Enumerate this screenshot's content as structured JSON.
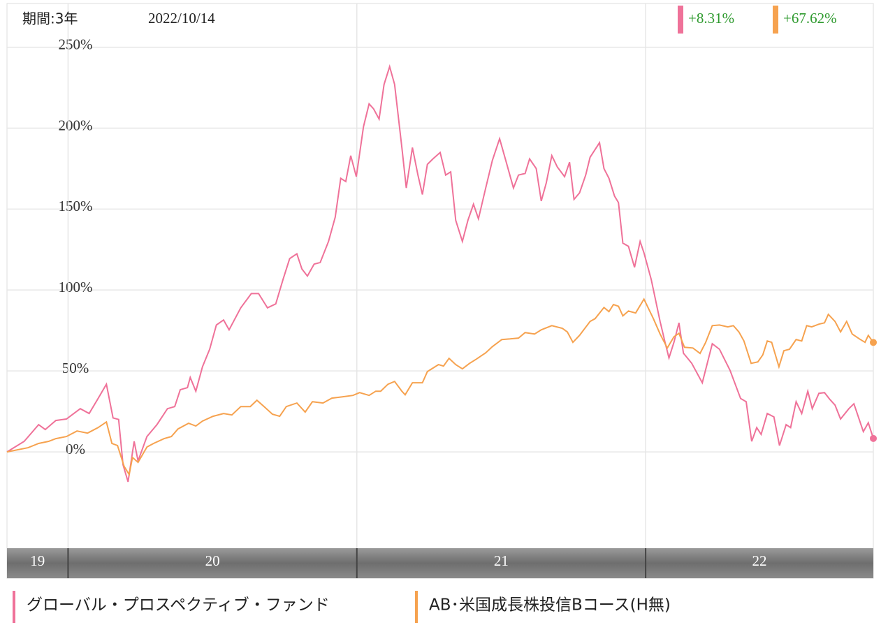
{
  "chart_data": {
    "type": "line",
    "period_label": "期間:3年",
    "date": "2022/10/14",
    "xlim": [
      0,
      156
    ],
    "xticks": [
      11,
      63,
      115
    ],
    "x_band_labels": [
      "19",
      "20",
      "21",
      "22"
    ],
    "ylim": [
      -59.5,
      277
    ],
    "yticks": [
      {
        "value": 0,
        "label": "0%"
      },
      {
        "value": 50,
        "label": "50%"
      },
      {
        "value": 100,
        "label": "100%"
      },
      {
        "value": 150,
        "label": "150%"
      },
      {
        "value": 200,
        "label": "200%"
      },
      {
        "value": 250,
        "label": "250%"
      }
    ],
    "grid": true,
    "series": [
      {
        "name": "グローバル・プロスペクティブ・ファンド",
        "color": "#ef7299",
        "end_label": "+8.31%",
        "x": [
          0,
          3.1,
          5.7,
          6.9,
          8.8,
          10.7,
          13.2,
          14.8,
          16.4,
          17.9,
          19.1,
          20.1,
          20.9,
          21.8,
          22.9,
          23.6,
          25.2,
          27.0,
          28.9,
          30.2,
          31.2,
          32.5,
          33.0,
          34.0,
          35.2,
          36.5,
          37.7,
          39.0,
          40.0,
          42.1,
          44.0,
          45.3,
          46.9,
          48.4,
          49.7,
          50.9,
          52.2,
          53.1,
          54.1,
          55.3,
          56.4,
          57.9,
          59.1,
          60.1,
          61.0,
          61.9,
          62.9,
          64.2,
          65.2,
          66.0,
          67.0,
          67.9,
          68.9,
          69.8,
          71.1,
          71.9,
          73.0,
          74.0,
          74.8,
          75.7,
          76.7,
          78.0,
          79.0,
          79.9,
          80.8,
          82.0,
          83.0,
          84.0,
          84.9,
          86.2,
          87.4,
          88.7,
          89.9,
          91.2,
          92.1,
          93.3,
          94.1,
          95.3,
          96.2,
          97.1,
          98.1,
          99.1,
          100.4,
          101.3,
          102.1,
          103.1,
          104.2,
          105.0,
          106.7,
          107.5,
          108.4,
          109.4,
          110.1,
          110.9,
          111.9,
          113.0,
          114.0,
          114.7,
          116.0,
          117.6,
          118.5,
          119.2,
          120.1,
          121.0,
          121.8,
          123.3,
          125.2,
          127.0,
          128.3,
          130.2,
          132.1,
          133.1,
          134.1,
          135.0,
          135.8,
          136.9,
          138.1,
          139.1,
          140.3,
          141.1,
          142.1,
          143.1,
          144.2,
          145.0,
          146.2,
          147.2,
          148.2,
          149.1,
          150.1,
          151.6,
          152.5,
          154.2,
          155.1,
          156
        ],
        "values": [
          0,
          6.5,
          16.8,
          13.8,
          19.4,
          20.3,
          26.7,
          23.7,
          33,
          41.8,
          21,
          20,
          -8,
          -18.5,
          6.5,
          -5.6,
          9.5,
          16.8,
          26.7,
          28,
          38.4,
          39.7,
          46,
          37.5,
          52.6,
          63.4,
          78.4,
          81.5,
          75.4,
          89,
          97.8,
          97.8,
          89,
          91.4,
          106.5,
          119.4,
          122.4,
          113,
          108.6,
          116,
          117,
          130,
          145,
          169,
          167,
          183,
          170,
          201,
          215,
          212,
          205.6,
          227,
          238,
          227,
          188,
          163,
          188,
          171,
          159,
          177.6,
          181,
          185,
          171,
          173,
          143,
          130,
          143,
          153,
          144,
          163,
          180,
          193.5,
          179,
          163,
          171,
          172,
          181,
          175,
          155,
          166,
          183,
          176,
          170,
          179,
          156,
          160,
          171,
          182,
          191,
          175,
          169,
          158,
          154,
          129,
          127,
          114,
          130,
          123,
          106.5,
          80.6,
          67.7,
          58,
          67.7,
          79.7,
          61,
          54.7,
          42.7,
          66.8,
          63.4,
          50.4,
          33,
          31,
          6.5,
          15,
          10.8,
          23.7,
          21.6,
          3.9,
          16.8,
          15,
          31,
          23.7,
          37.5,
          26.7,
          36.2,
          36.6,
          32.3,
          28.9,
          20.3,
          26.7,
          29.7,
          12.5,
          18,
          8.31
        ]
      },
      {
        "name": "AB･米国成長株投信Bコース(H無)",
        "color": "#f6a24f",
        "end_label": "+67.62%",
        "x": [
          0,
          3.8,
          5.7,
          7.5,
          8.8,
          10.7,
          12.6,
          14.5,
          16.4,
          17.9,
          18.9,
          19.9,
          21.1,
          22.0,
          22.6,
          23.6,
          25.2,
          26.4,
          28.3,
          29.6,
          30.8,
          32.7,
          34.0,
          35.2,
          37.1,
          39.0,
          40.5,
          42.1,
          43.8,
          45.0,
          46.3,
          47.8,
          49.1,
          50.3,
          52.2,
          53.7,
          55.0,
          56.9,
          58.5,
          60.4,
          62.3,
          63.5,
          65.2,
          66.4,
          67.3,
          68.6,
          69.8,
          71.1,
          71.7,
          73.0,
          74.8,
          75.7,
          77.7,
          78.6,
          79.6,
          80.8,
          82.0,
          83.3,
          84.5,
          86.2,
          87.4,
          89.1,
          90.6,
          92.1,
          93.3,
          95.0,
          96.2,
          98.1,
          100.0,
          100.9,
          101.9,
          103.1,
          105.0,
          105.9,
          107.5,
          108.4,
          109.2,
          110.1,
          110.9,
          111.9,
          113.2,
          114.7,
          116.4,
          117.6,
          118.9,
          120.1,
          121.0,
          122.0,
          123.5,
          124.8,
          125.8,
          127.0,
          128.3,
          129.8,
          130.8,
          131.8,
          132.7,
          134.0,
          135.2,
          136.1,
          136.9,
          137.7,
          139.0,
          139.9,
          140.9,
          142.1,
          143.1,
          144.0,
          144.9,
          146.2,
          147.2,
          147.9,
          149.1,
          150.1,
          151.2,
          152.2,
          153.5,
          154.5,
          155.1,
          156
        ],
        "values": [
          0,
          2.6,
          5.2,
          6.5,
          8.2,
          9.5,
          12.9,
          11.6,
          15,
          18.5,
          5.2,
          3.9,
          -9,
          -14,
          -3.4,
          -6.5,
          3,
          5.2,
          8.2,
          9.5,
          14.2,
          17.7,
          16,
          19,
          22,
          23.7,
          22.8,
          28,
          28,
          31.9,
          28,
          23.3,
          22,
          28,
          30.2,
          24.6,
          31,
          30.2,
          33.2,
          34,
          34.9,
          36.6,
          34.9,
          37.5,
          37.5,
          41.8,
          43.5,
          37.5,
          35.3,
          42.7,
          42.7,
          49.6,
          53.9,
          53,
          57.8,
          53.9,
          51.3,
          54.7,
          57.3,
          61.2,
          65,
          69.4,
          69.8,
          70.3,
          73.7,
          72.8,
          75.4,
          78,
          76.3,
          74.1,
          67.7,
          72,
          80.6,
          82.3,
          89.2,
          86.6,
          91,
          90,
          84,
          87,
          85.8,
          94.4,
          82.3,
          72.8,
          64.2,
          71.1,
          73.3,
          64.6,
          64.2,
          60.8,
          67.5,
          78,
          78.4,
          77.2,
          78,
          74.1,
          68.5,
          54.7,
          55.6,
          59.9,
          68.5,
          67.7,
          52.6,
          62.5,
          63.4,
          69.4,
          68.5,
          78,
          77.2,
          78.9,
          79.7,
          85,
          80.6,
          74.1,
          80.6,
          72.8,
          69.8,
          67.7,
          72,
          67.62
        ]
      }
    ]
  }
}
